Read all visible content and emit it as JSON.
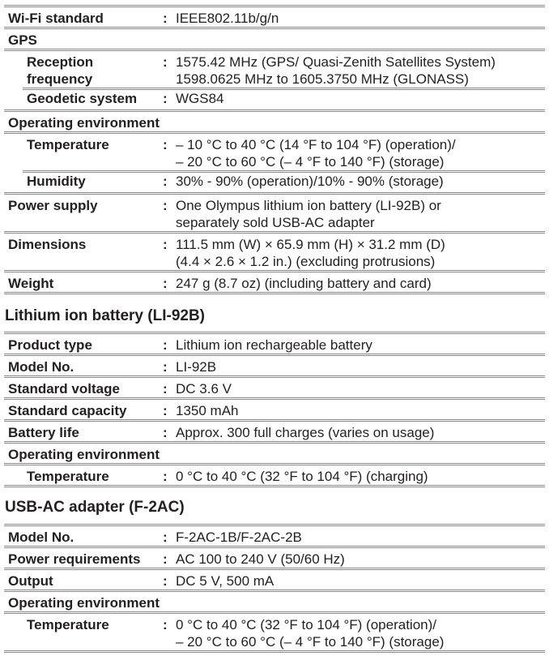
{
  "camera_table": [
    {
      "label": "Wi-Fi standard",
      "values": [
        "IEEE802.11b/g/n"
      ]
    },
    {
      "label": "GPS",
      "values": [],
      "header": true
    },
    {
      "label": "Reception frequency",
      "labelLines": [
        "Reception",
        "frequency"
      ],
      "values": [
        "1575.42 MHz (GPS/ Quasi-Zenith Satellites System)",
        "1598.0625 MHz to 1605.3750 MHz (GLONASS)"
      ],
      "sub": true
    },
    {
      "label": "Geodetic system",
      "values": [
        "WGS84"
      ],
      "sub": true,
      "indentLine": true
    },
    {
      "label": "Operating environment",
      "values": [],
      "header": true
    },
    {
      "label": "Temperature",
      "values": [
        "– 10 °C to 40 °C (14 °F to 104 °F) (operation)/",
        "– 20 °C to 60 °C (– 4 °F to 140 °F) (storage)"
      ],
      "sub": true
    },
    {
      "label": "Humidity",
      "values": [
        "30% - 90% (operation)/10% - 90% (storage)"
      ],
      "sub": true,
      "indentLine": true
    },
    {
      "label": "Power supply",
      "values": [
        "One Olympus lithium ion battery (LI-92B) or",
        "separately sold USB-AC adapter"
      ]
    },
    {
      "label": "Dimensions",
      "values": [
        "111.5 mm (W) × 65.9 mm (H) × 31.2 mm (D)",
        "(4.4 × 2.6 × 1.2 in.) (excluding protrusions)"
      ]
    },
    {
      "label": "Weight",
      "values": [
        "247 g (8.7 oz) (including battery and card)"
      ]
    }
  ],
  "battery_title": "Lithium ion battery (LI-92B)",
  "battery_table": [
    {
      "label": "Product type",
      "values": [
        "Lithium ion rechargeable battery"
      ]
    },
    {
      "label": "Model No.",
      "values": [
        "LI-92B"
      ]
    },
    {
      "label": "Standard voltage",
      "values": [
        "DC 3.6 V"
      ]
    },
    {
      "label": "Standard capacity",
      "values": [
        "1350 mAh"
      ]
    },
    {
      "label": "Battery life",
      "values": [
        "Approx. 300 full charges (varies on usage)"
      ]
    },
    {
      "label": "Operating environment",
      "values": [],
      "header": true
    },
    {
      "label": "Temperature",
      "values": [
        "0 °C to 40 °C (32 °F to 104 °F) (charging)"
      ],
      "sub": true
    }
  ],
  "adapter_title": "USB-AC adapter (F-2AC)",
  "adapter_table": [
    {
      "label": "Model No.",
      "values": [
        "F-2AC-1B/F-2AC-2B"
      ]
    },
    {
      "label": "Power requirements",
      "values": [
        "AC 100 to 240 V (50/60 Hz)"
      ]
    },
    {
      "label": "Output",
      "values": [
        "DC 5 V, 500 mA"
      ]
    },
    {
      "label": "Operating environment",
      "values": [],
      "header": true
    },
    {
      "label": "Temperature",
      "values": [
        "0 °C to 40 °C (32 °F to 104 °F) (operation)/",
        "– 20 °C to 60 °C (– 4 °F to 140 °F) (storage)"
      ],
      "sub": true
    }
  ]
}
